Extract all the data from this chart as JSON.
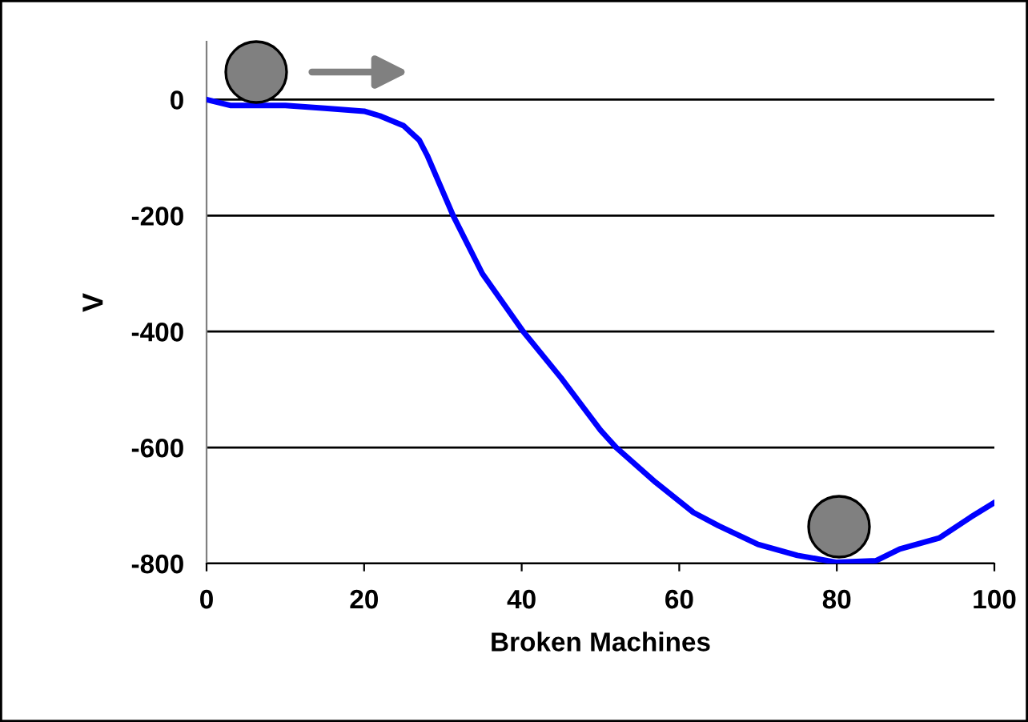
{
  "chart_data": {
    "type": "line",
    "xlabel": "Broken Machines",
    "ylabel": "V",
    "x": [
      0,
      3,
      10,
      15,
      20,
      22,
      25,
      27,
      28,
      31.3,
      35,
      40.2,
      45,
      50,
      52,
      57,
      61.8,
      65,
      70,
      75,
      80,
      85,
      88,
      93,
      97,
      100
    ],
    "series": [
      {
        "color": "#0000ff",
        "values": [
          0,
          -10,
          -10,
          -15,
          -20,
          -28,
          -45,
          -70,
          -96,
          -200,
          -300,
          -400,
          -480,
          -570,
          -600,
          -660,
          -712,
          -735,
          -767,
          -786,
          -798,
          -795,
          -775,
          -756,
          -720,
          -695
        ]
      }
    ],
    "xlim": [
      0,
      100
    ],
    "ylim": [
      -800,
      100
    ],
    "xticks": [
      0,
      20,
      40,
      60,
      80,
      100
    ],
    "yticks": [
      -800,
      -600,
      -400,
      -200,
      0
    ],
    "grid": "y",
    "marker": "none",
    "line_style": "solid"
  }
}
